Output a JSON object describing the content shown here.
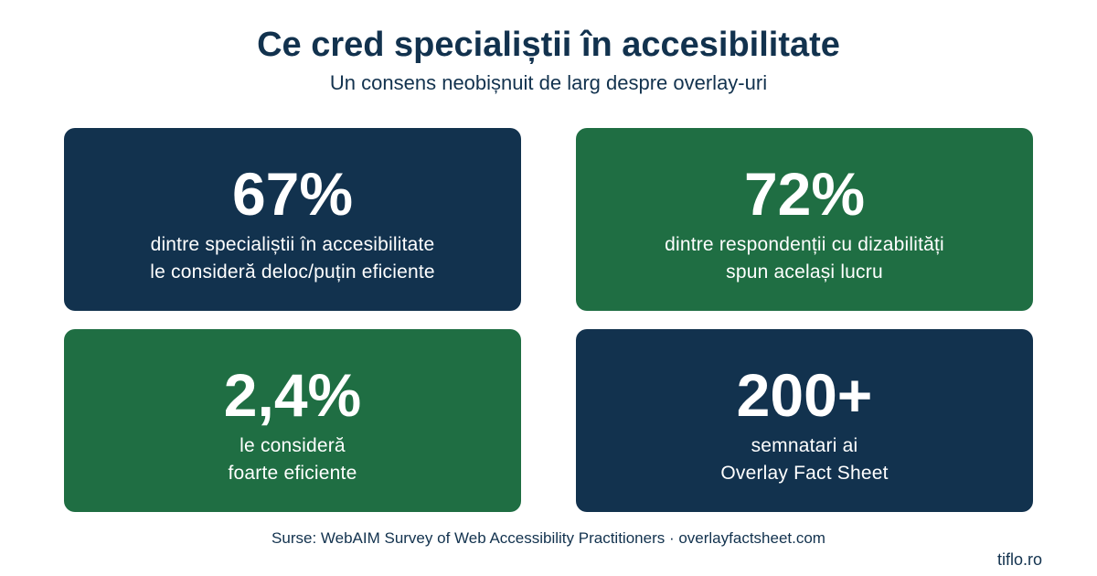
{
  "header": {
    "title": "Ce cred specialiștii în accesibilitate",
    "subtitle": "Un consens neobișnuit de larg despre overlay-uri"
  },
  "colors": {
    "navy": "#12324e",
    "green": "#1f6e43",
    "text_on_card": "#ffffff",
    "background": "#ffffff"
  },
  "stats": [
    {
      "value": "67%",
      "line1": "dintre specialiștii în accesibilitate",
      "line2": "le consideră deloc/puțin eficiente",
      "color": "#12324e"
    },
    {
      "value": "72%",
      "line1": "dintre respondenții cu dizabilități",
      "line2": "spun același lucru",
      "color": "#1f6e43"
    },
    {
      "value": "2,4%",
      "line1": "le consideră",
      "line2": "foarte eficiente",
      "color": "#1f6e43"
    },
    {
      "value": "200+",
      "line1": "semnatari ai",
      "line2": "Overlay Fact Sheet",
      "color": "#12324e"
    }
  ],
  "footer": {
    "sources": "Surse: WebAIM Survey of Web Accessibility Practitioners · overlayfactsheet.com",
    "brand": "tiflo.ro"
  }
}
